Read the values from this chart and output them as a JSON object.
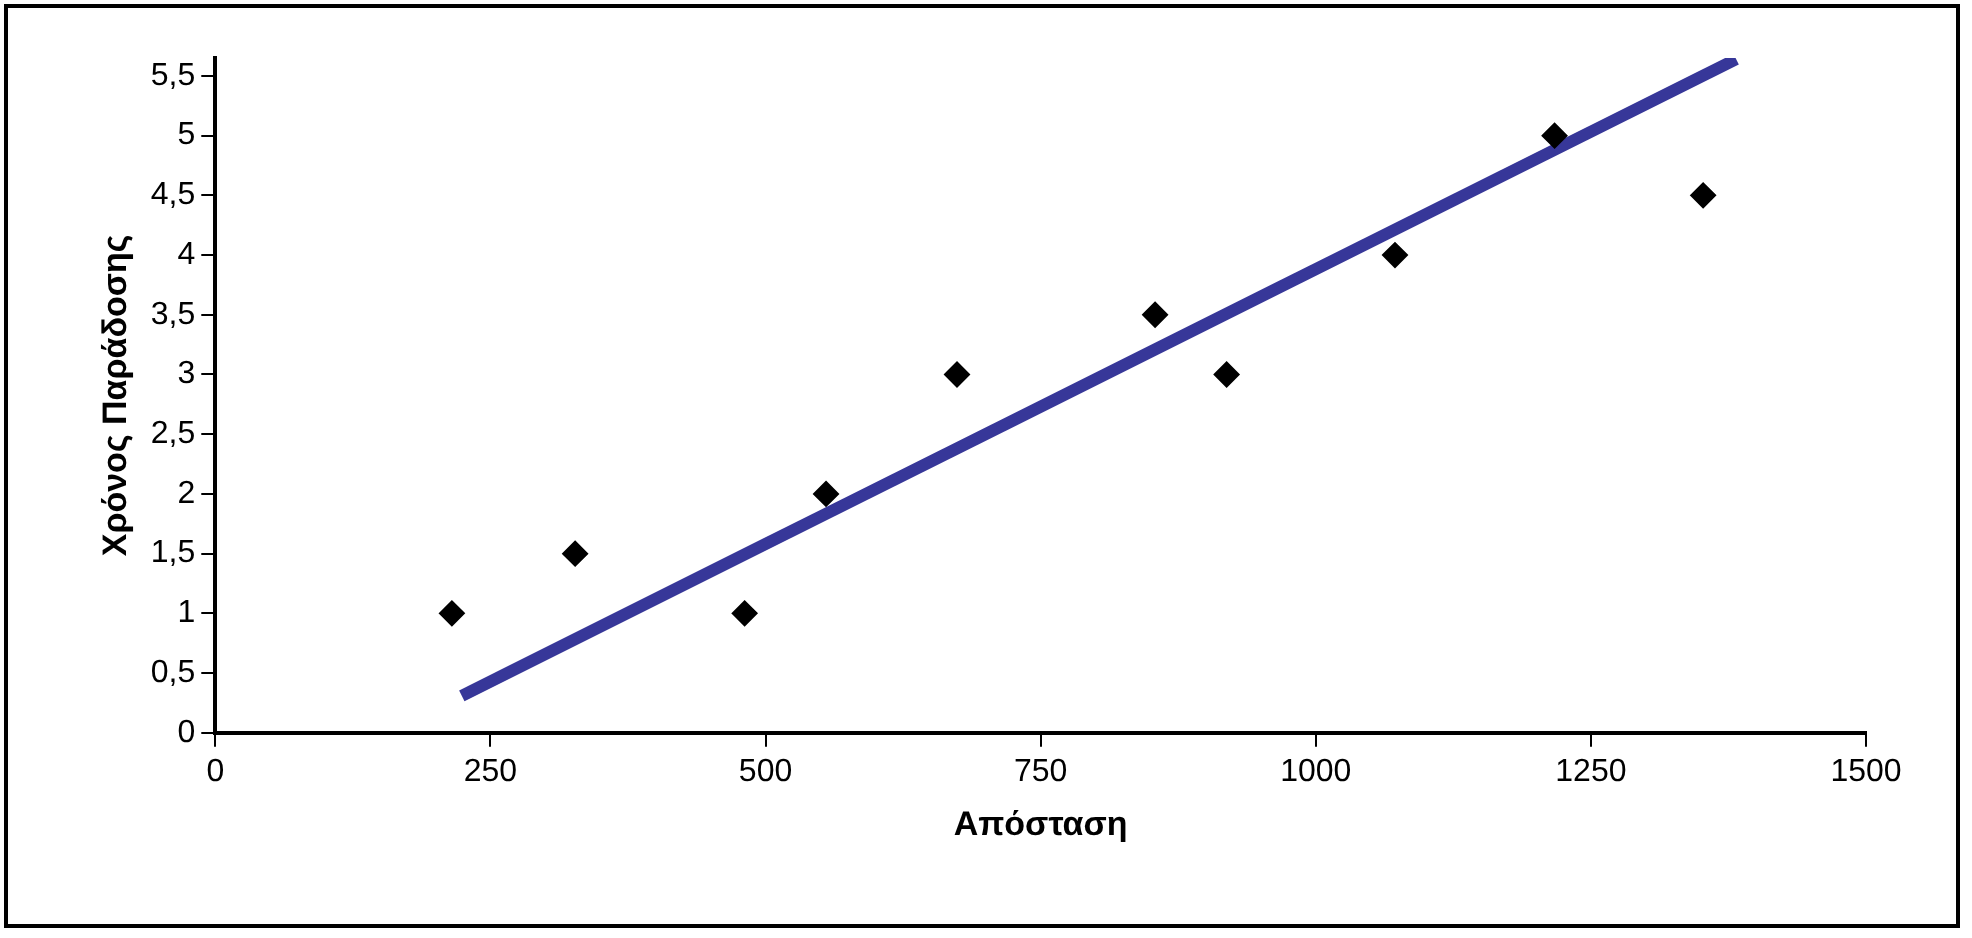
{
  "chart_data": {
    "type": "scatter",
    "xlabel": "Απόσταση",
    "ylabel": "Χρόνος Παράδοσης",
    "x": [
      215,
      327,
      481,
      555,
      674,
      854,
      919,
      1072,
      1217,
      1352
    ],
    "series": [
      {
        "color": "#000000",
        "marker": "diamond",
        "values": [
          1,
          1.5,
          1,
          2,
          3,
          3.5,
          3,
          4,
          5,
          4.5
        ]
      },
      {
        "type": "line",
        "color": "#373799",
        "marker": "none",
        "line_style": "solid",
        "x": [
          224,
          1382
        ],
        "values": [
          0.31,
          5.64
        ]
      }
    ],
    "xlim": [
      0,
      1500
    ],
    "xticks": [
      0,
      250,
      500,
      750,
      1000,
      1250,
      1500
    ],
    "ylim": [
      0,
      5.65
    ],
    "yticks": [
      0,
      {
        "value": 0.5,
        "label": "0,5"
      },
      1,
      {
        "value": 1.5,
        "label": "1,5"
      },
      2,
      {
        "value": 2.5,
        "label": "2,5"
      },
      3,
      {
        "value": 3.5,
        "label": "3,5"
      },
      4,
      {
        "value": 4.5,
        "label": "4,5"
      },
      5,
      {
        "value": 5.5,
        "label": "5,5"
      }
    ],
    "grid": false,
    "legend": false
  }
}
